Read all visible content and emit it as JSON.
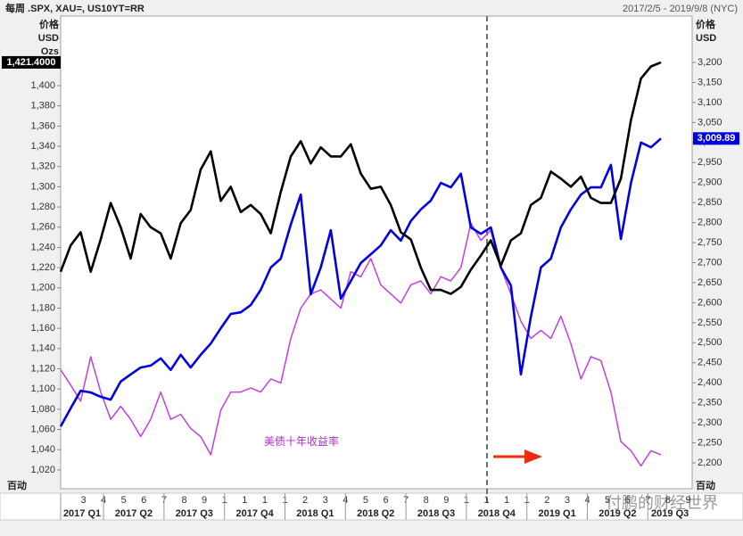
{
  "chart_data": {
    "type": "line",
    "title": "每周 .SPX, XAU=, US10YT=RR",
    "subtitle": "2017/2/5 - 2019/9/8 (NYC)",
    "y_axis_label": [
      "价格",
      "USD",
      "Ozs"
    ],
    "y2_axis_label": [
      "价格",
      "USD"
    ],
    "corner_labels": [
      "百动",
      "百动"
    ],
    "annotation": "美债十年收益率",
    "watermark": "付鹏的财经世界",
    "last_price_labels": [
      "1,421.4000",
      "3,009.89"
    ],
    "month_labels": [
      "3",
      "4",
      "5",
      "6",
      "7",
      "8",
      "9",
      "1",
      "1",
      "1",
      "1",
      "2",
      "3",
      "4",
      "5",
      "6",
      "7",
      "8",
      "9",
      "1",
      "1",
      "1",
      "1",
      "2",
      "3",
      "4",
      "5",
      "6",
      "7",
      "8",
      "9"
    ],
    "quarter_labels": [
      "2017 Q1",
      "2017 Q2",
      "2017 Q3",
      "2017 Q4",
      "2018 Q1",
      "2018 Q2",
      "2018 Q3",
      "2018 Q4",
      "2019 Q1",
      "2019 Q2",
      "2019 Q3"
    ],
    "ylim": [
      1001.4,
      1468.8
    ],
    "yticks": [
      {
        "value": 1020,
        "label": "1,020"
      },
      {
        "value": 1040,
        "label": "1,040"
      },
      {
        "value": 1060,
        "label": "1,060"
      },
      {
        "value": 1080,
        "label": "1,080"
      },
      {
        "value": 1100,
        "label": "1,100"
      },
      {
        "value": 1120,
        "label": "1,120"
      },
      {
        "value": 1140,
        "label": "1,140"
      },
      {
        "value": 1160,
        "label": "1,160"
      },
      {
        "value": 1180,
        "label": "1,180"
      },
      {
        "value": 1200,
        "label": "1,200"
      },
      {
        "value": 1220,
        "label": "1,220"
      },
      {
        "value": 1240,
        "label": "1,240"
      },
      {
        "value": 1260,
        "label": "1,260"
      },
      {
        "value": 1280,
        "label": "1,280"
      },
      {
        "value": 1300,
        "label": "1,300"
      },
      {
        "value": 1320,
        "label": "1,320"
      },
      {
        "value": 1340,
        "label": "1,340"
      },
      {
        "value": 1360,
        "label": "1,360"
      },
      {
        "value": 1380,
        "label": "1,380"
      },
      {
        "value": 1400,
        "label": "1,400"
      }
    ],
    "y2lim": [
      2135.4,
      3315.8
    ],
    "y2ticks": [
      {
        "value": 2200,
        "label": "2,200"
      },
      {
        "value": 2250,
        "label": "2,250"
      },
      {
        "value": 2300,
        "label": "2,300"
      },
      {
        "value": 2350,
        "label": "2,350"
      },
      {
        "value": 2400,
        "label": "2,400"
      },
      {
        "value": 2450,
        "label": "2,450"
      },
      {
        "value": 2500,
        "label": "2,500"
      },
      {
        "value": 2550,
        "label": "2,550"
      },
      {
        "value": 2600,
        "label": "2,600"
      },
      {
        "value": 2650,
        "label": "2,650"
      },
      {
        "value": 2700,
        "label": "2,700"
      },
      {
        "value": 2750,
        "label": "2,750"
      },
      {
        "value": 2800,
        "label": "2,800"
      },
      {
        "value": 2850,
        "label": "2,850"
      },
      {
        "value": 2900,
        "label": "2,900"
      },
      {
        "value": 2950,
        "label": "2,950"
      },
      {
        "value": 3000,
        "label": "3,000"
      },
      {
        "value": 3050,
        "label": "3,050"
      },
      {
        "value": 3100,
        "label": "3,100"
      },
      {
        "value": 3150,
        "label": "3,150"
      },
      {
        "value": 3200,
        "label": "3,200"
      }
    ],
    "series": [
      {
        "name": "XAU=",
        "color": "#000000",
        "axis": "y",
        "values": [
          1216,
          1242,
          1255,
          1216,
          1248,
          1284,
          1260,
          1229,
          1273,
          1260,
          1254,
          1229,
          1264,
          1277,
          1317,
          1335,
          1286,
          1300,
          1275,
          1282,
          1273,
          1254,
          1295,
          1330,
          1345,
          1323,
          1339,
          1330,
          1330,
          1342,
          1313,
          1298,
          1300,
          1282,
          1255,
          1248,
          1220,
          1198,
          1198,
          1194,
          1201,
          1218,
          1232,
          1247,
          1222,
          1247,
          1254,
          1282,
          1289,
          1315,
          1308,
          1300,
          1310,
          1289,
          1284,
          1284,
          1308,
          1366,
          1407,
          1419,
          1423
        ]
      },
      {
        "name": ".SPX",
        "color": "#0000e0",
        "axis": "y2",
        "values": [
          2291,
          2336,
          2380,
          2376,
          2365,
          2358,
          2403,
          2421,
          2438,
          2443,
          2461,
          2432,
          2470,
          2438,
          2470,
          2498,
          2536,
          2572,
          2576,
          2594,
          2632,
          2688,
          2710,
          2795,
          2870,
          2621,
          2688,
          2781,
          2610,
          2654,
          2699,
          2721,
          2743,
          2781,
          2755,
          2804,
          2833,
          2855,
          2899,
          2888,
          2922,
          2788,
          2772,
          2788,
          2688,
          2643,
          2421,
          2565,
          2688,
          2710,
          2788,
          2833,
          2870,
          2888,
          2888,
          2944,
          2759,
          2899,
          3000,
          2988,
          3010
        ]
      },
      {
        "name": "US10YT=RR",
        "color": "#c040e0",
        "axis": "y",
        "values": [
          1119,
          1104,
          1088,
          1132,
          1097,
          1070,
          1083,
          1070,
          1053,
          1070,
          1097,
          1070,
          1075,
          1061,
          1053,
          1035,
          1079,
          1097,
          1097,
          1101,
          1097,
          1110,
          1106,
          1150,
          1180,
          1194,
          1198,
          1189,
          1180,
          1216,
          1211,
          1229,
          1203,
          1194,
          1185,
          1203,
          1207,
          1194,
          1211,
          1207,
          1220,
          1264,
          1247,
          1257,
          1220,
          1194,
          1167,
          1150,
          1158,
          1150,
          1172,
          1145,
          1110,
          1132,
          1128,
          1097,
          1048,
          1039,
          1024,
          1039,
          1035
        ]
      }
    ]
  }
}
